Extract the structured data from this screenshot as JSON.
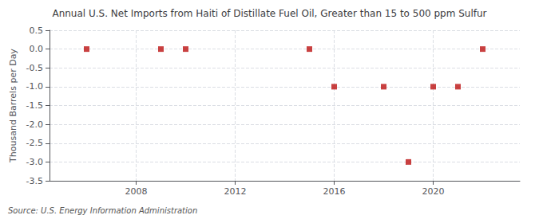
{
  "chart_data": {
    "type": "scatter",
    "title": "Annual U.S. Net Imports from Haiti of Distillate Fuel Oil, Greater than 15 to 500 ppm Sulfur",
    "ylabel": "Thousand Barrels per Day",
    "source": "Source: U.S. Energy Information Administration",
    "x": [
      2006,
      2009,
      2010,
      2015,
      2016,
      2018,
      2019,
      2020,
      2021,
      2022
    ],
    "values": [
      0,
      0,
      0,
      0,
      -1,
      -1,
      -3,
      -1,
      -1,
      0
    ],
    "color": "#bb1111",
    "marker": "square",
    "xlim": [
      2004.5,
      2023.5
    ],
    "xticks": [
      2008,
      2012,
      2016,
      2020
    ],
    "ylim": [
      -3.5,
      0.5
    ],
    "yticks": [
      0.5,
      {
        "value": 0,
        "label": "0.0"
      },
      -0.5,
      {
        "value": -1,
        "label": "-1.0"
      },
      -1.5,
      {
        "value": -2,
        "label": "-2.0"
      },
      -2.5,
      {
        "value": -3,
        "label": "-3.0"
      },
      -3.5
    ],
    "grid": true
  }
}
